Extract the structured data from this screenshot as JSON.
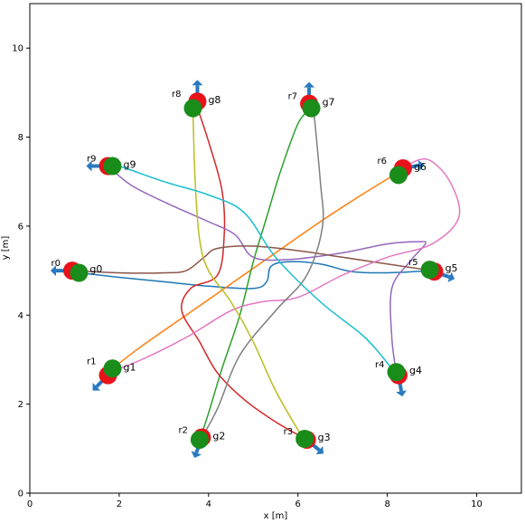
{
  "chart_data": {
    "type": "line",
    "title": "",
    "xlabel": "x [m]",
    "ylabel": "y [m]",
    "xlim": [
      0,
      11
    ],
    "ylim": [
      0,
      11
    ],
    "grid": false,
    "xticks": [
      "0",
      "2",
      "4",
      "6",
      "8",
      "10"
    ],
    "yticks": [
      "0",
      "2",
      "4",
      "6",
      "8",
      "10"
    ],
    "start_color": "#e8121a",
    "goal_color": "#1a8c1a",
    "arrow_color": "#2979c0",
    "series": [
      {
        "robot": "r0",
        "goal": "g0",
        "color": "#1f77b4",
        "points": [
          [
            1.1,
            4.95
          ],
          [
            2.0,
            4.85
          ],
          [
            3.0,
            4.75
          ],
          [
            4.0,
            4.65
          ],
          [
            5.0,
            4.6
          ],
          [
            5.3,
            4.75
          ],
          [
            5.4,
            5.1
          ],
          [
            5.8,
            5.2
          ],
          [
            6.5,
            5.15
          ],
          [
            7.2,
            4.98
          ],
          [
            8.0,
            4.95
          ],
          [
            9.0,
            5.0
          ]
        ]
      },
      {
        "robot": "r1",
        "goal": "g1",
        "color": "#ff7f0e",
        "points": [
          [
            1.85,
            2.8
          ],
          [
            2.5,
            3.3
          ],
          [
            3.5,
            4.0
          ],
          [
            4.5,
            4.7
          ],
          [
            5.5,
            5.4
          ],
          [
            6.5,
            6.1
          ],
          [
            7.5,
            6.75
          ],
          [
            8.4,
            7.3
          ]
        ]
      },
      {
        "robot": "r2",
        "goal": "g2",
        "color": "#2ca02c",
        "points": [
          [
            3.8,
            1.2
          ],
          [
            4.0,
            1.8
          ],
          [
            4.3,
            2.8
          ],
          [
            4.7,
            4.0
          ],
          [
            5.0,
            5.2
          ],
          [
            5.3,
            6.2
          ],
          [
            5.6,
            7.2
          ],
          [
            6.0,
            8.3
          ],
          [
            6.3,
            8.65
          ]
        ]
      },
      {
        "robot": "r3",
        "goal": "g3",
        "color": "#d62728",
        "points": [
          [
            6.2,
            1.2
          ],
          [
            5.5,
            1.6
          ],
          [
            4.8,
            2.1
          ],
          [
            4.2,
            2.7
          ],
          [
            3.8,
            3.4
          ],
          [
            3.4,
            4.1
          ],
          [
            3.6,
            4.6
          ],
          [
            4.2,
            4.9
          ],
          [
            4.35,
            5.8
          ],
          [
            4.3,
            6.8
          ],
          [
            4.0,
            7.9
          ],
          [
            3.7,
            8.8
          ]
        ]
      },
      {
        "robot": "r4",
        "goal": "g4",
        "color": "#9467bd",
        "points": [
          [
            8.2,
            2.7
          ],
          [
            8.1,
            3.5
          ],
          [
            8.1,
            4.6
          ],
          [
            8.5,
            5.2
          ],
          [
            8.85,
            5.6
          ],
          [
            8.7,
            5.65
          ],
          [
            8.0,
            5.6
          ],
          [
            7.0,
            5.4
          ],
          [
            5.8,
            5.25
          ],
          [
            5.0,
            5.3
          ],
          [
            4.6,
            5.8
          ],
          [
            4.0,
            6.1
          ],
          [
            3.1,
            6.5
          ],
          [
            2.3,
            6.9
          ],
          [
            1.8,
            7.3
          ]
        ]
      },
      {
        "robot": "r5",
        "goal": "g5",
        "color": "#8c564b",
        "points": [
          [
            9.0,
            5.0
          ],
          [
            8.0,
            5.15
          ],
          [
            7.0,
            5.3
          ],
          [
            6.0,
            5.45
          ],
          [
            5.0,
            5.55
          ],
          [
            4.2,
            5.5
          ],
          [
            3.9,
            5.3
          ],
          [
            3.5,
            5.0
          ],
          [
            3.0,
            4.95
          ],
          [
            2.0,
            4.95
          ],
          [
            1.0,
            5.0
          ]
        ]
      },
      {
        "robot": "r6",
        "goal": "g6",
        "color": "#e377c2",
        "points": [
          [
            1.75,
            2.7
          ],
          [
            2.5,
            3.0
          ],
          [
            3.5,
            3.5
          ],
          [
            4.5,
            4.1
          ],
          [
            5.2,
            4.3
          ],
          [
            6.0,
            4.4
          ],
          [
            7.0,
            4.9
          ],
          [
            8.0,
            5.3
          ],
          [
            9.0,
            5.6
          ],
          [
            9.6,
            6.2
          ],
          [
            9.4,
            7.0
          ],
          [
            8.9,
            7.5
          ],
          [
            8.4,
            7.35
          ]
        ]
      },
      {
        "robot": "r7",
        "goal": "g7",
        "color": "#7f7f7f",
        "points": [
          [
            3.85,
            1.25
          ],
          [
            4.2,
            1.9
          ],
          [
            4.7,
            3.1
          ],
          [
            5.5,
            4.1
          ],
          [
            6.2,
            4.9
          ],
          [
            6.55,
            6.0
          ],
          [
            6.5,
            7.0
          ],
          [
            6.35,
            8.65
          ]
        ]
      },
      {
        "robot": "r8",
        "goal": "g8",
        "color": "#bcbd22",
        "points": [
          [
            6.1,
            1.25
          ],
          [
            5.5,
            2.3
          ],
          [
            5.0,
            3.4
          ],
          [
            4.5,
            4.3
          ],
          [
            4.0,
            5.0
          ],
          [
            3.8,
            5.7
          ],
          [
            3.7,
            7.0
          ],
          [
            3.65,
            8.65
          ]
        ]
      },
      {
        "robot": "r9",
        "goal": "g9",
        "color": "#17becf",
        "points": [
          [
            8.1,
            2.8
          ],
          [
            7.5,
            3.5
          ],
          [
            6.5,
            4.3
          ],
          [
            5.5,
            5.3
          ],
          [
            4.8,
            6.3
          ],
          [
            4.0,
            6.7
          ],
          [
            3.0,
            7.0
          ],
          [
            2.0,
            7.35
          ],
          [
            1.85,
            7.35
          ]
        ]
      }
    ],
    "robots": [
      {
        "name": "r0",
        "x": 0.95,
        "y": 5.0,
        "goal": "g0",
        "gx": 1.1,
        "gy": 4.95,
        "heading": 180
      },
      {
        "name": "r1",
        "x": 1.75,
        "y": 2.65,
        "goal": "g1",
        "gx": 1.85,
        "gy": 2.8,
        "heading": 225
      },
      {
        "name": "r2",
        "x": 3.85,
        "y": 1.25,
        "goal": "g2",
        "gx": 3.8,
        "gy": 1.2,
        "heading": 250
      },
      {
        "name": "r3",
        "x": 6.2,
        "y": 1.2,
        "goal": "g3",
        "gx": 6.15,
        "gy": 1.22,
        "heading": 320
      },
      {
        "name": "r4",
        "x": 8.25,
        "y": 2.65,
        "goal": "g4",
        "gx": 8.2,
        "gy": 2.72,
        "heading": 280
      },
      {
        "name": "r5",
        "x": 9.05,
        "y": 4.98,
        "goal": "g5",
        "gx": 8.95,
        "gy": 5.02,
        "heading": 340
      },
      {
        "name": "r6",
        "x": 8.35,
        "y": 7.3,
        "goal": "g6",
        "gx": 8.25,
        "gy": 7.15,
        "heading": 10
      },
      {
        "name": "r7",
        "x": 6.25,
        "y": 8.75,
        "goal": "g7",
        "gx": 6.3,
        "gy": 8.65,
        "heading": 90
      },
      {
        "name": "r8",
        "x": 3.75,
        "y": 8.8,
        "goal": "g8",
        "gx": 3.65,
        "gy": 8.65,
        "heading": 90
      },
      {
        "name": "r9",
        "x": 1.75,
        "y": 7.35,
        "goal": "g9",
        "gx": 1.85,
        "gy": 7.35,
        "heading": 180
      }
    ]
  }
}
